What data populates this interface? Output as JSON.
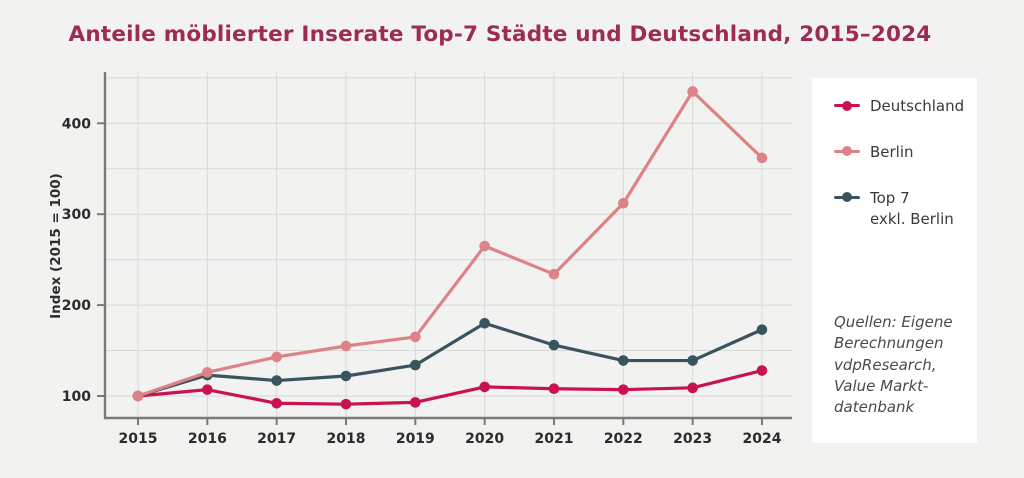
{
  "chart_data": {
    "type": "line",
    "title": "Anteile möblierter Inserate Top-7 Städte und Deutschland, 2015–2024",
    "ylabel": "Index (2015 = 100)",
    "x": [
      2015,
      2016,
      2017,
      2018,
      2019,
      2020,
      2021,
      2022,
      2023,
      2024
    ],
    "series": [
      {
        "name": "Deutschland",
        "legend_label": "Deutschland",
        "color": "#c9134f",
        "z": 1,
        "values": [
          100,
          107,
          92,
          91,
          93,
          110,
          108,
          107,
          109,
          128
        ]
      },
      {
        "name": "Berlin",
        "legend_label": "Berlin",
        "color": "#dd8287",
        "z": 3,
        "values": [
          100,
          126,
          143,
          155,
          165,
          265,
          234,
          312,
          435,
          362
        ]
      },
      {
        "name": "Top 7 exkl. Berlin",
        "legend_label": "Top 7\nexkl. Berlin",
        "color": "#3a545d",
        "z": 2,
        "values": [
          100,
          123,
          117,
          122,
          134,
          180,
          156,
          139,
          139,
          173
        ]
      }
    ],
    "yticks": [
      100,
      200,
      300,
      400
    ],
    "ylim": [
      76,
      456
    ],
    "grid": true,
    "grid_min": 100,
    "grid_max": 450,
    "grid_step": 50,
    "legend_position": "right",
    "source_note": "Quellen: Eigene Berechnungen vdpResearch, Value Markt- datenbank"
  },
  "colors": {
    "background": "#f2f2f1",
    "panel": "#ffffff",
    "title": "#9c2c55",
    "deutschland": "#c9134f",
    "berlin": "#dd8287",
    "top7": "#3a545d"
  }
}
